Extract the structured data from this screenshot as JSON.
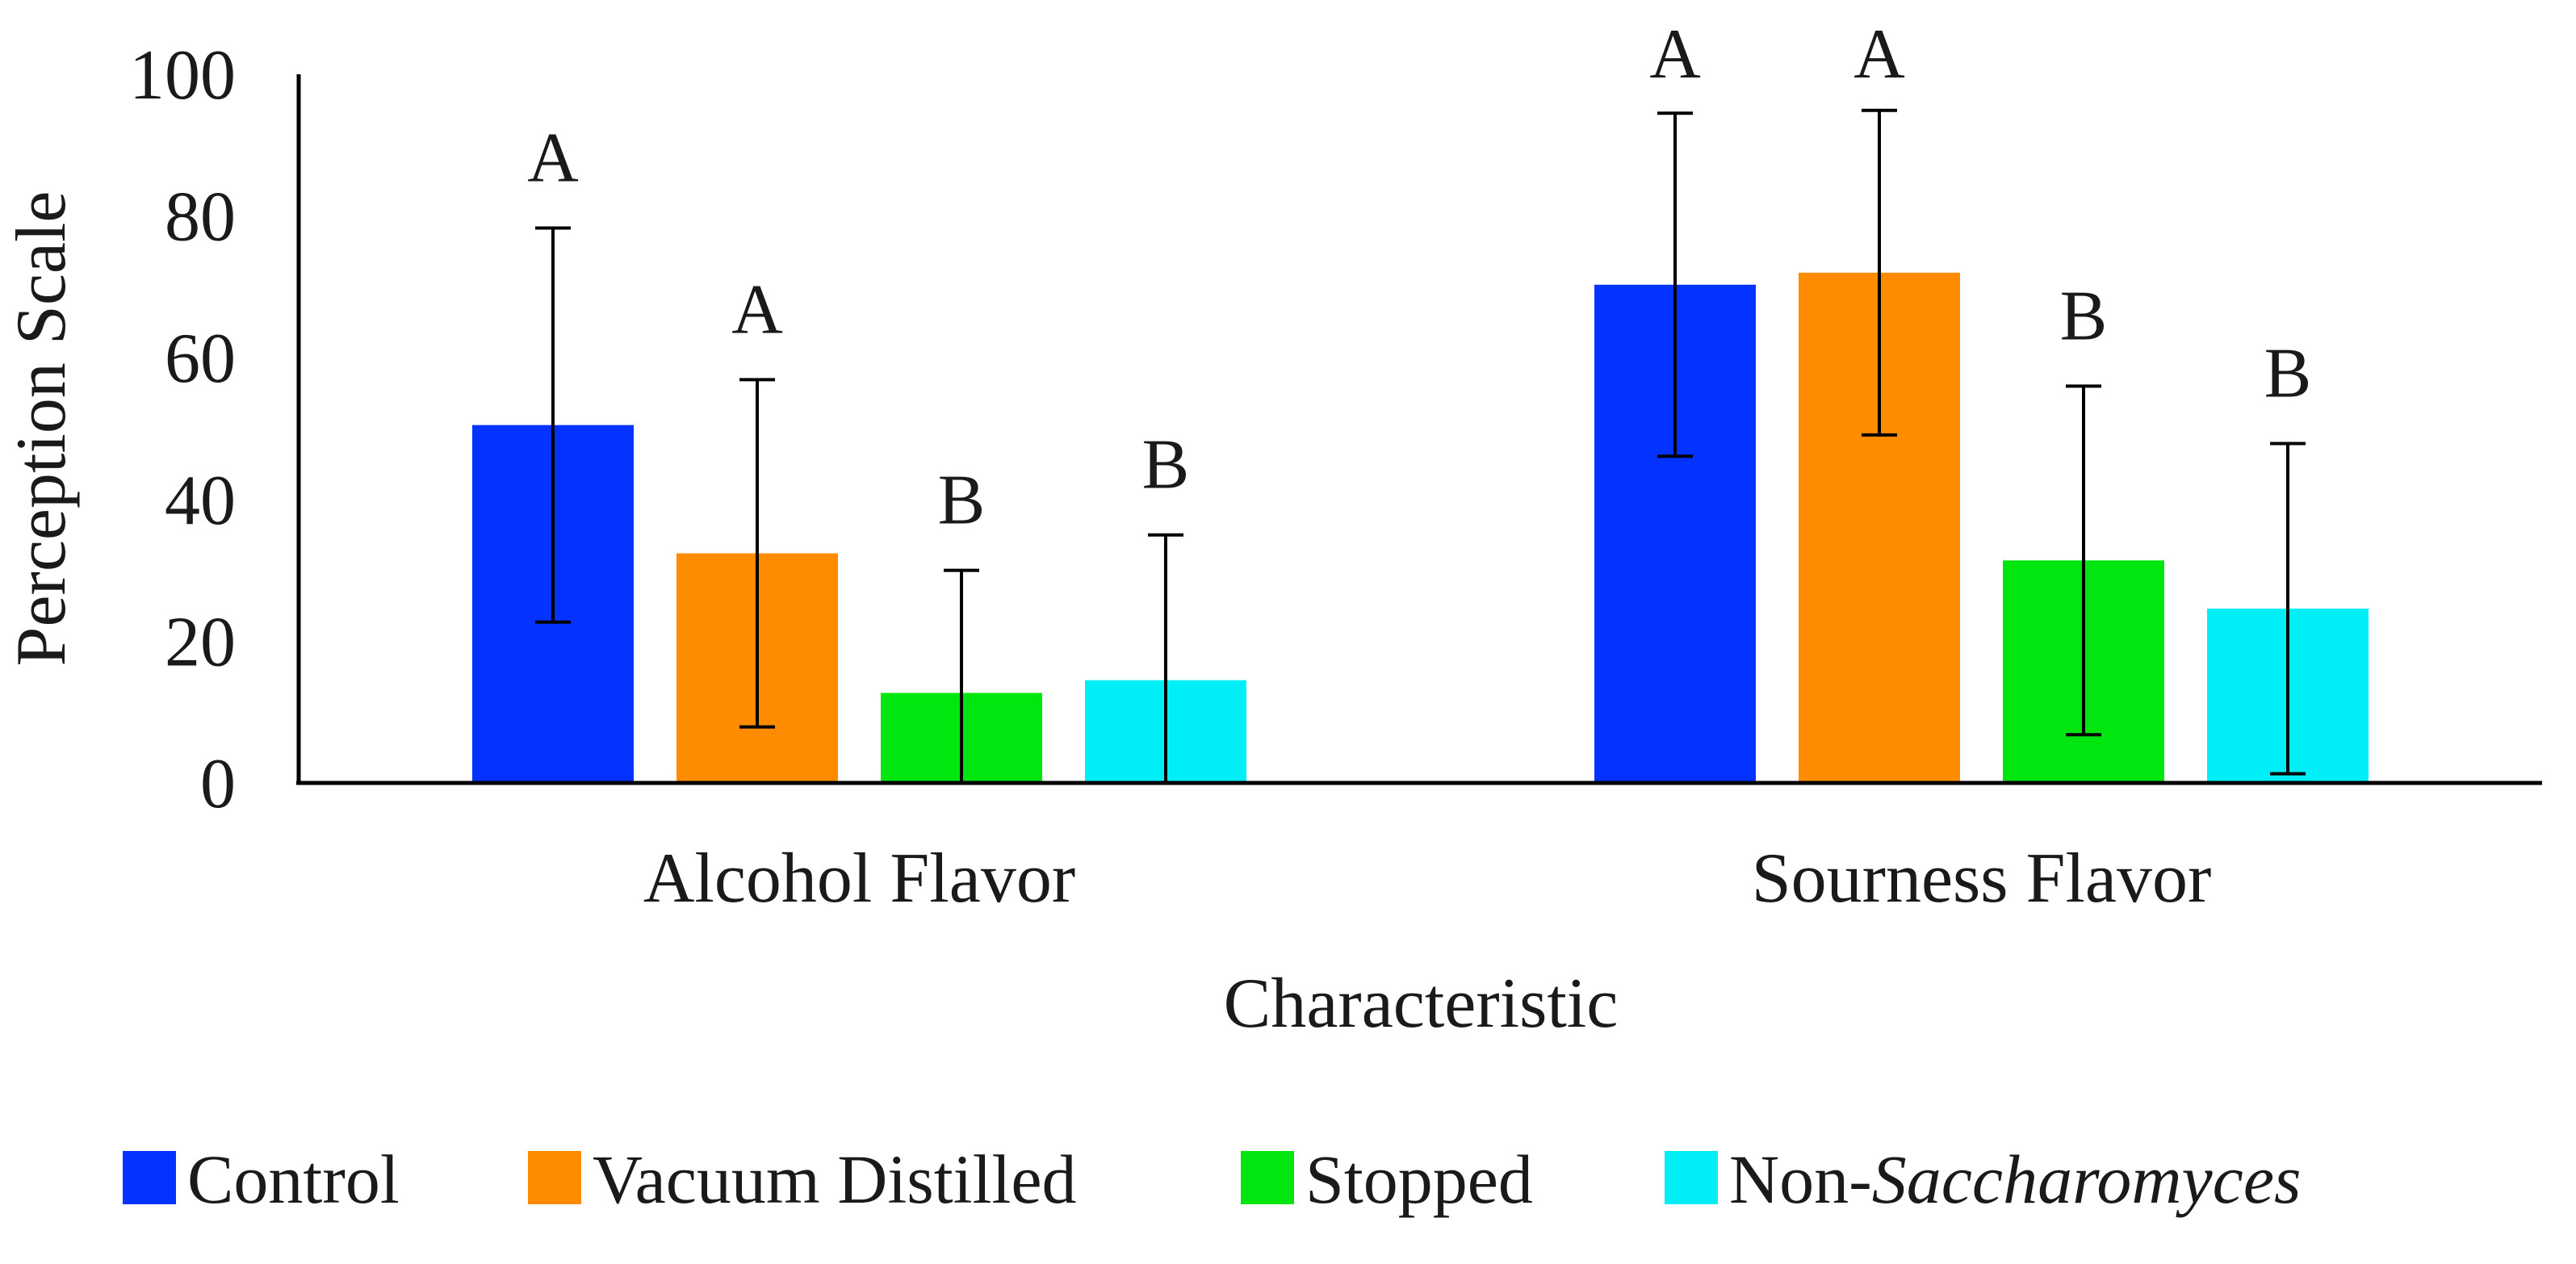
{
  "chart_data": {
    "type": "bar",
    "title": "",
    "xlabel": "Characteristic",
    "ylabel": "Perception Scale",
    "ylim": [
      0,
      100
    ],
    "yticks": [
      "0",
      "20",
      "40",
      "60",
      "80",
      "100"
    ],
    "grid": false,
    "legend_position": "bottom",
    "categories": [
      "Alcohol Flavor",
      "Sourness Flavor"
    ],
    "series": [
      {
        "name": "Control",
        "name_parts": [
          {
            "text": "Control",
            "italic": false
          }
        ],
        "color": "#0433ff",
        "values": [
          50.5,
          70.3
        ],
        "errors": [
          27.8,
          24.2
        ],
        "letters": [
          "A",
          "A"
        ]
      },
      {
        "name": "Vacuum Distilled",
        "name_parts": [
          {
            "text": "Vacuum Distilled",
            "italic": false
          }
        ],
        "color": "#ff8c00",
        "values": [
          32.4,
          72.0
        ],
        "errors": [
          24.5,
          22.9
        ],
        "letters": [
          "A",
          "A"
        ]
      },
      {
        "name": "Stopped",
        "name_parts": [
          {
            "text": "Stopped",
            "italic": false
          }
        ],
        "color": "#00e60e",
        "values": [
          12.7,
          31.4
        ],
        "errors": [
          17.3,
          24.6
        ],
        "letters": [
          "B",
          "B"
        ]
      },
      {
        "name": "Non-Saccharomyces",
        "name_parts": [
          {
            "text": "Non-",
            "italic": false
          },
          {
            "text": "Saccharomyces",
            "italic": true
          }
        ],
        "color": "#00eef6",
        "values": [
          14.5,
          24.6
        ],
        "errors": [
          20.5,
          23.3
        ],
        "letters": [
          "B",
          "B"
        ]
      }
    ]
  }
}
